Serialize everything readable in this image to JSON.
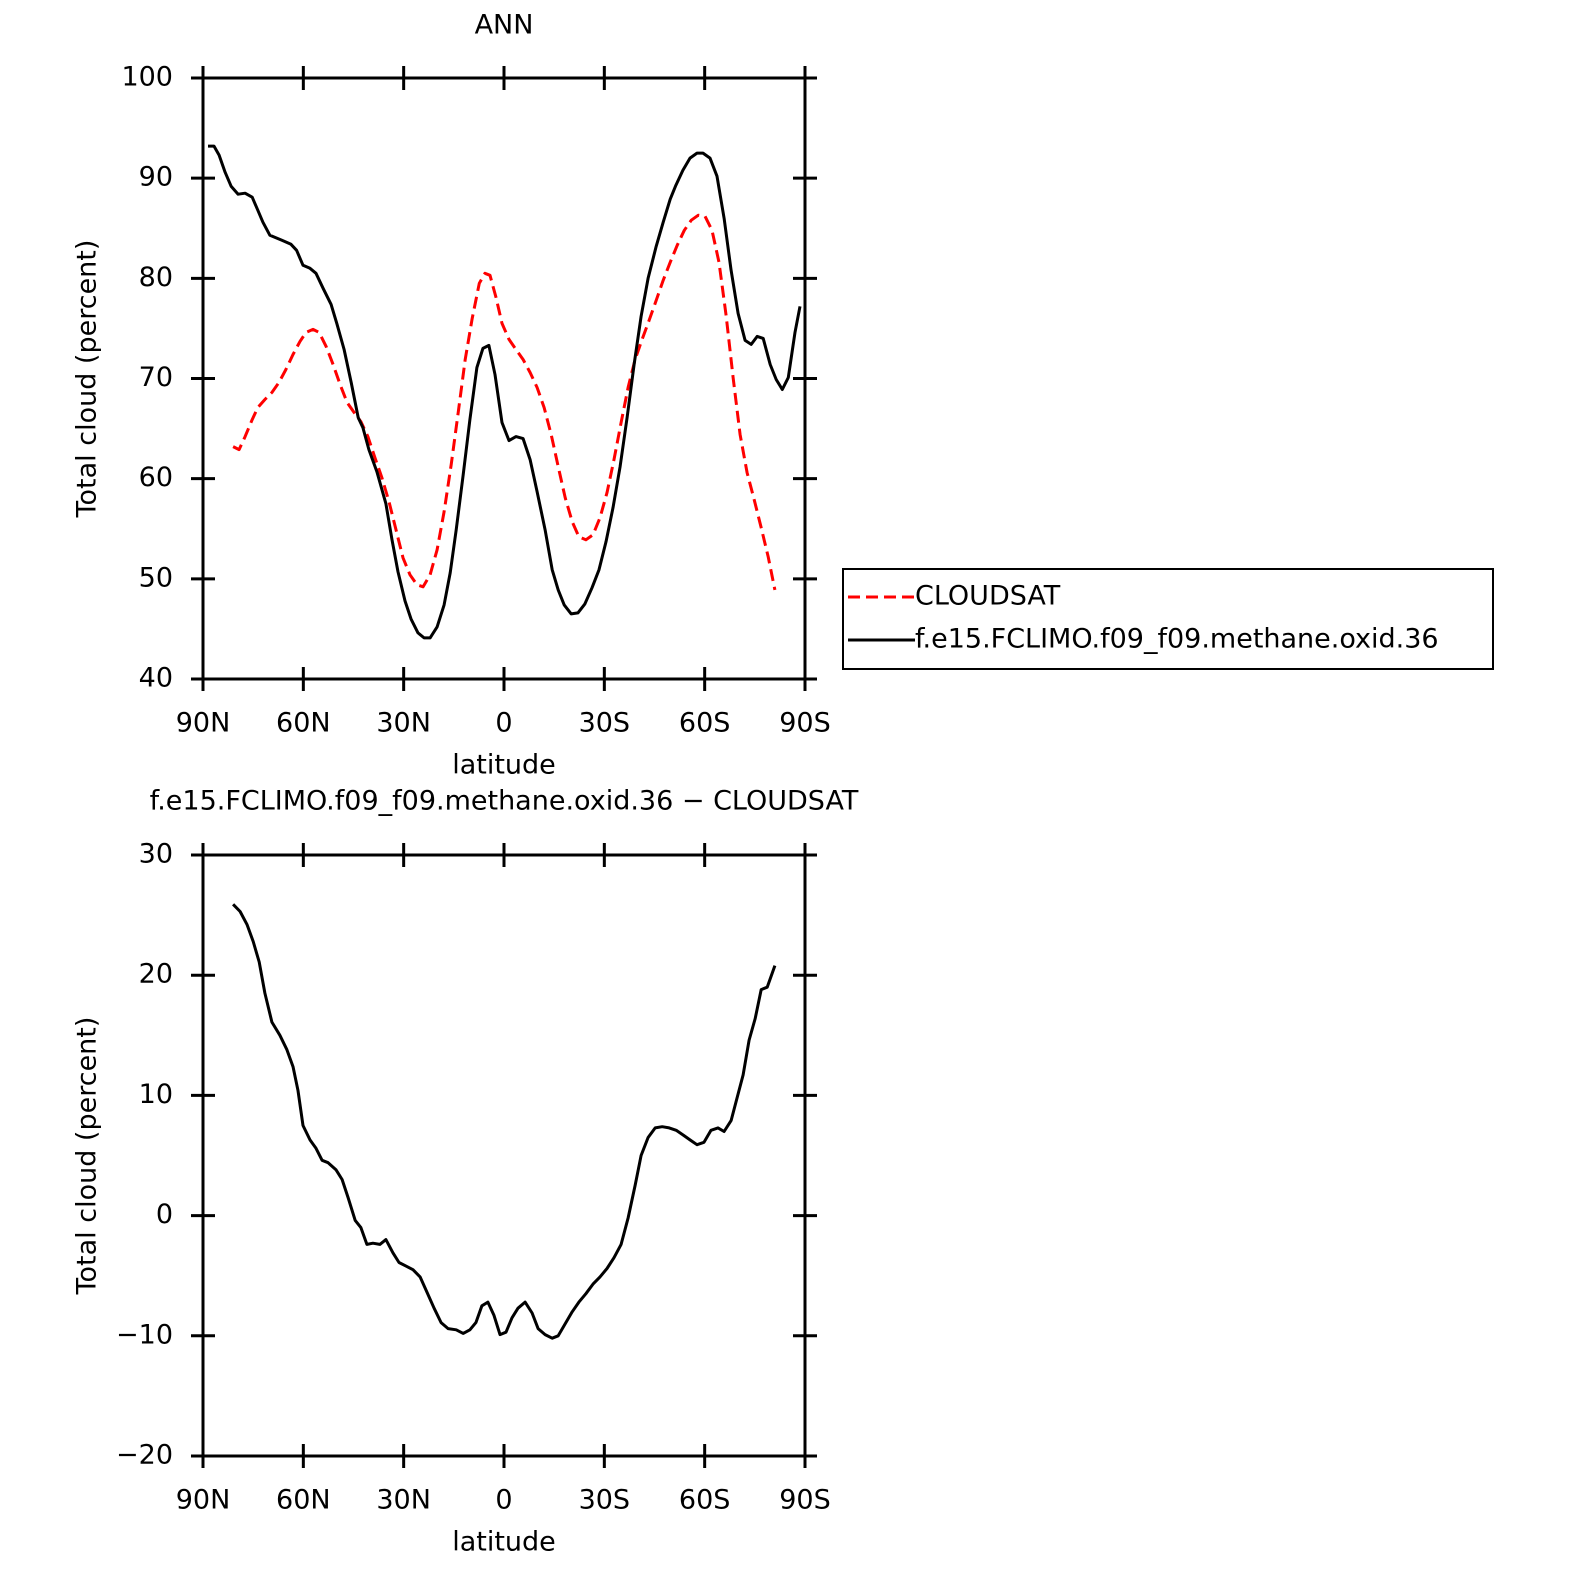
{
  "chart_data": [
    {
      "type": "line",
      "title": "ANN",
      "xlabel": "latitude",
      "ylabel": "Total cloud (percent)",
      "xlim": [
        90,
        -90
      ],
      "xticks": [
        {
          "value": 90,
          "label": "90N"
        },
        {
          "value": 60,
          "label": "60N"
        },
        {
          "value": 30,
          "label": "30N"
        },
        0,
        {
          "value": -30,
          "label": "30S"
        },
        {
          "value": -60,
          "label": "60S"
        },
        {
          "value": -90,
          "label": "90S"
        }
      ],
      "ylim": [
        40,
        100
      ],
      "yticks": [
        40,
        50,
        60,
        70,
        80,
        90,
        100
      ],
      "legend": "outside-right",
      "series": [
        {
          "name": "CLOUDSAT",
          "color": "#ff0000",
          "dash": true,
          "x": [
            81.0,
            79.2,
            77.4,
            75.3,
            73.6,
            71.5,
            69.4,
            67.3,
            65.2,
            63.1,
            61.0,
            59.2,
            57.1,
            55.3,
            53.2,
            51.1,
            49.0,
            46.9,
            44.8,
            42.8,
            40.7,
            38.6,
            36.5,
            34.4,
            32.3,
            30.2,
            28.1,
            26.0,
            24.2,
            22.1,
            20.0,
            17.9,
            15.8,
            13.7,
            11.6,
            9.5,
            7.4,
            5.7,
            4.2,
            2.4,
            0.6,
            -1.5,
            -3.6,
            -5.7,
            -7.8,
            -9.9,
            -12.0,
            -14.1,
            -16.2,
            -18.3,
            -20.4,
            -22.4,
            -24.5,
            -26.6,
            -28.7,
            -30.8,
            -32.9,
            -35.0,
            -37.1,
            -39.2,
            -41.3,
            -43.4,
            -45.5,
            -47.6,
            -49.7,
            -51.8,
            -53.9,
            -56.0,
            -58.1,
            -60.1,
            -62.2,
            -64.3,
            -66.4,
            -68.5,
            -70.6,
            -72.7,
            -74.8,
            -76.9,
            -79.0,
            -81.0
          ],
          "values": [
            63.2,
            62.9,
            64.2,
            65.9,
            67.1,
            67.9,
            68.6,
            69.6,
            70.9,
            72.4,
            73.7,
            74.6,
            74.9,
            74.6,
            73.2,
            71.4,
            69.4,
            67.6,
            66.6,
            65.7,
            64.2,
            62.1,
            60.1,
            57.7,
            54.9,
            52.1,
            50.4,
            49.4,
            49.2,
            50.4,
            52.9,
            56.7,
            61.4,
            66.6,
            71.9,
            76.0,
            79.5,
            80.5,
            80.3,
            78.1,
            75.5,
            73.9,
            72.9,
            71.9,
            70.6,
            69.1,
            67.1,
            64.4,
            61.2,
            58.1,
            55.7,
            54.2,
            53.9,
            54.4,
            56.1,
            58.6,
            61.9,
            65.6,
            69.1,
            71.9,
            73.9,
            75.8,
            77.8,
            79.8,
            81.6,
            83.3,
            84.8,
            85.8,
            86.3,
            86.2,
            84.8,
            81.6,
            76.3,
            70.1,
            64.4,
            60.6,
            57.9,
            55.1,
            52.2,
            48.9
          ]
        },
        {
          "name": "f.e15.FCLIMO.f09_f09.methane.oxid.36",
          "color": "#000000",
          "dash": false,
          "x": [
            88.5,
            86.7,
            85.2,
            83.4,
            81.6,
            79.5,
            77.4,
            75.3,
            73.6,
            72.1,
            70.0,
            66.4,
            63.7,
            62.0,
            60.1,
            58.0,
            56.2,
            54.1,
            51.7,
            50.0,
            47.8,
            45.7,
            43.6,
            42.2,
            40.4,
            38.0,
            35.3,
            33.5,
            31.7,
            29.6,
            27.8,
            25.7,
            23.9,
            22.1,
            20.0,
            17.9,
            16.1,
            14.3,
            12.2,
            10.2,
            8.1,
            6.3,
            4.5,
            2.7,
            0.6,
            -1.5,
            -3.6,
            -5.7,
            -7.8,
            -9.9,
            -12.3,
            -14.4,
            -16.2,
            -18.0,
            -20.1,
            -22.1,
            -24.2,
            -26.3,
            -28.4,
            -30.5,
            -32.6,
            -34.7,
            -36.8,
            -38.9,
            -41.0,
            -43.1,
            -45.5,
            -47.6,
            -49.7,
            -51.4,
            -53.5,
            -55.6,
            -57.7,
            -59.5,
            -61.6,
            -63.7,
            -65.8,
            -67.9,
            -70.0,
            -72.1,
            -73.9,
            -75.7,
            -77.5,
            -79.6,
            -81.4,
            -83.2,
            -85.0,
            -87.0,
            -88.5
          ],
          "values": [
            93.2,
            93.2,
            92.3,
            90.6,
            89.2,
            88.4,
            88.5,
            88.1,
            86.8,
            85.6,
            84.3,
            83.8,
            83.4,
            82.8,
            81.3,
            81.0,
            80.5,
            79.0,
            77.4,
            75.5,
            72.9,
            69.6,
            66.1,
            65.1,
            62.9,
            60.7,
            57.5,
            53.9,
            50.7,
            47.8,
            46.0,
            44.6,
            44.1,
            44.1,
            45.2,
            47.4,
            50.6,
            54.9,
            60.4,
            65.9,
            71.1,
            73.0,
            73.3,
            70.4,
            65.6,
            63.8,
            64.2,
            64.0,
            61.9,
            58.7,
            54.9,
            50.9,
            48.9,
            47.4,
            46.5,
            46.6,
            47.5,
            49.1,
            50.9,
            53.7,
            57.1,
            61.2,
            66.1,
            71.4,
            76.2,
            80.0,
            83.2,
            85.6,
            87.9,
            89.3,
            90.8,
            92.0,
            92.5,
            92.5,
            92.0,
            90.2,
            86.0,
            80.8,
            76.5,
            73.8,
            73.4,
            74.2,
            74.0,
            71.4,
            69.9,
            68.9,
            70.1,
            74.6,
            77.2
          ]
        }
      ]
    },
    {
      "type": "line",
      "title": "f.e15.FCLIMO.f09_f09.methane.oxid.36 − CLOUDSAT",
      "xlabel": "latitude",
      "ylabel": "Total cloud (percent)",
      "xlim": [
        90,
        -90
      ],
      "xticks": [
        {
          "value": 90,
          "label": "90N"
        },
        {
          "value": 60,
          "label": "60N"
        },
        {
          "value": 30,
          "label": "30N"
        },
        0,
        {
          "value": -30,
          "label": "30S"
        },
        {
          "value": -60,
          "label": "60S"
        },
        {
          "value": -90,
          "label": "90S"
        }
      ],
      "ylim": [
        -20,
        30
      ],
      "yticks": [
        {
          "value": -20,
          "label": "−20"
        },
        {
          "value": -10,
          "label": "−10"
        },
        0,
        10,
        20,
        30
      ],
      "series": [
        {
          "color": "#000000",
          "dash": false,
          "x": [
            81.0,
            78.9,
            76.8,
            75.0,
            73.2,
            71.5,
            69.4,
            67.0,
            64.9,
            63.1,
            61.6,
            60.1,
            58.0,
            56.2,
            54.4,
            52.6,
            50.2,
            48.4,
            46.6,
            44.5,
            42.8,
            41.0,
            39.2,
            37.1,
            35.3,
            33.2,
            31.4,
            29.3,
            27.2,
            25.1,
            23.0,
            20.9,
            18.8,
            16.7,
            14.3,
            12.2,
            10.2,
            8.4,
            6.6,
            4.8,
            3.0,
            1.2,
            -0.6,
            -2.4,
            -4.2,
            -6.3,
            -8.4,
            -10.2,
            -12.3,
            -14.4,
            -16.2,
            -18.3,
            -20.4,
            -22.4,
            -24.5,
            -26.6,
            -28.7,
            -30.8,
            -32.9,
            -35.0,
            -37.1,
            -39.2,
            -41.0,
            -43.1,
            -45.2,
            -47.3,
            -49.4,
            -51.5,
            -53.6,
            -55.6,
            -57.7,
            -59.8,
            -61.9,
            -64.0,
            -65.8,
            -67.9,
            -69.7,
            -71.5,
            -73.3,
            -75.1,
            -76.9,
            -78.7,
            -81.0
          ],
          "values": [
            25.9,
            25.3,
            24.2,
            22.8,
            21.1,
            18.5,
            16.1,
            15.0,
            13.8,
            12.4,
            10.4,
            7.5,
            6.3,
            5.6,
            4.6,
            4.4,
            3.8,
            3.0,
            1.5,
            -0.4,
            -1.0,
            -2.4,
            -2.3,
            -2.4,
            -2.0,
            -3.1,
            -3.9,
            -4.2,
            -4.5,
            -5.1,
            -6.4,
            -7.7,
            -8.9,
            -9.4,
            -9.5,
            -9.8,
            -9.5,
            -8.9,
            -7.5,
            -7.2,
            -8.3,
            -9.9,
            -9.7,
            -8.5,
            -7.7,
            -7.2,
            -8.1,
            -9.4,
            -9.9,
            -10.2,
            -10.0,
            -9.0,
            -8.0,
            -7.2,
            -6.5,
            -5.7,
            -5.1,
            -4.4,
            -3.5,
            -2.4,
            -0.2,
            2.5,
            5.0,
            6.5,
            7.3,
            7.4,
            7.3,
            7.1,
            6.7,
            6.3,
            5.9,
            6.1,
            7.1,
            7.3,
            7.0,
            7.9,
            9.8,
            11.7,
            14.6,
            16.4,
            18.8,
            19.0,
            20.8
          ]
        }
      ]
    }
  ]
}
